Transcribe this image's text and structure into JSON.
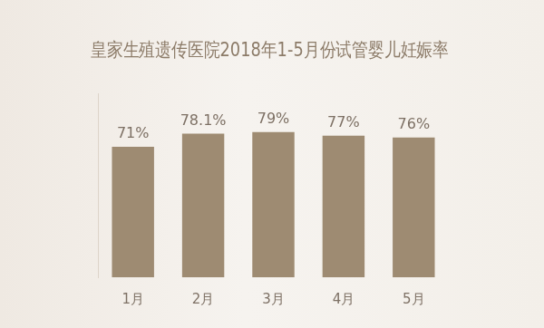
{
  "chart_data": {
    "type": "bar",
    "title": "皇家生殖遗传医院2018年1-5月份试管婴儿妊娠率",
    "categories": [
      "1月",
      "2月",
      "3月",
      "4月",
      "5月"
    ],
    "values": [
      71,
      78.1,
      79,
      77,
      76
    ],
    "value_labels": [
      "71%",
      "78.1%",
      "79%",
      "77%",
      "76%"
    ],
    "color": "#9e8b72",
    "ylim": [
      0,
      100
    ],
    "grid": false,
    "data_labels": true,
    "tick_labels": "x"
  }
}
